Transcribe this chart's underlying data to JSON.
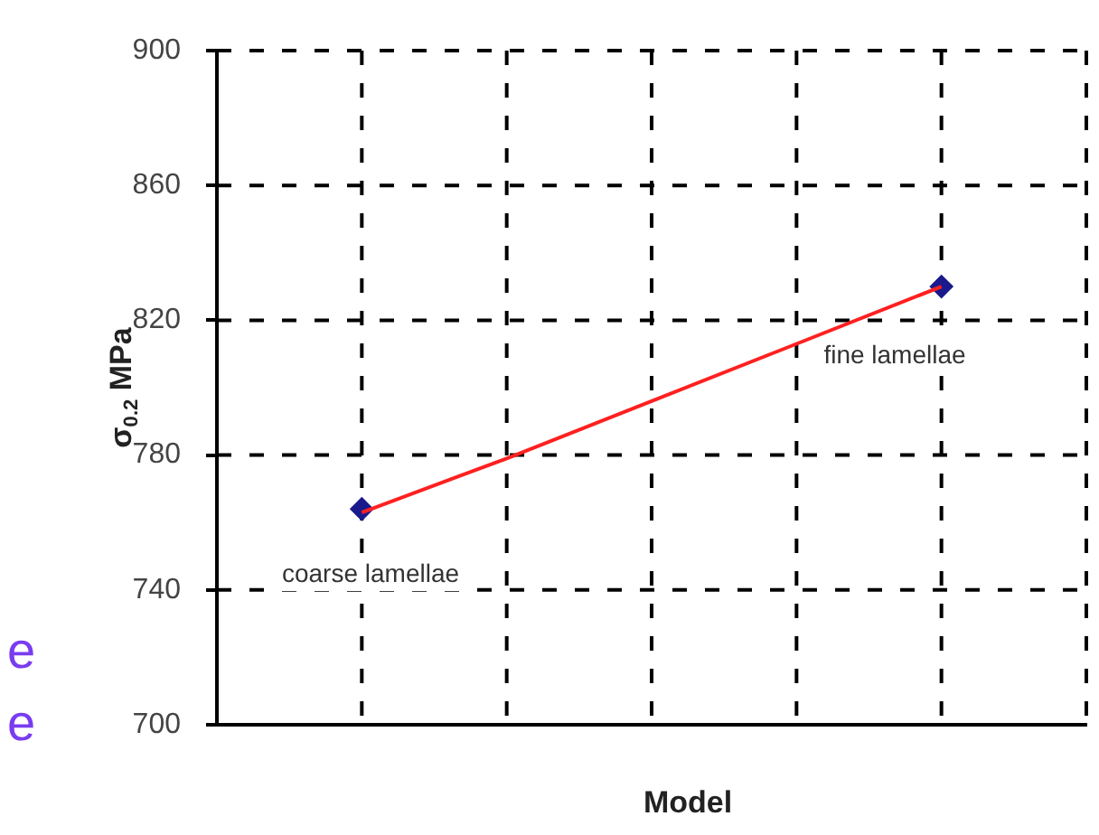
{
  "chart_data": {
    "type": "scatter",
    "xlabel": "Model",
    "ylabel": "σ$_{0.2}$ MPa",
    "categories": [
      null,
      null,
      null,
      null,
      null,
      null,
      null
    ],
    "ylim": [
      700,
      900
    ],
    "yticks": [
      700,
      740,
      780,
      820,
      860,
      900
    ],
    "grid": true,
    "series": [
      {
        "type": "line",
        "color": "#ff2020",
        "values": [
          null,
          763,
          779,
          796,
          813,
          830,
          null
        ],
        "marker": "none"
      },
      {
        "color": "#1a1a8c",
        "values": [
          null,
          764,
          null,
          null,
          null,
          830,
          null
        ],
        "marker": "diamond"
      }
    ],
    "annotations": [
      "coarse lamellae",
      "fine lamellae",
      "e",
      "e"
    ]
  }
}
